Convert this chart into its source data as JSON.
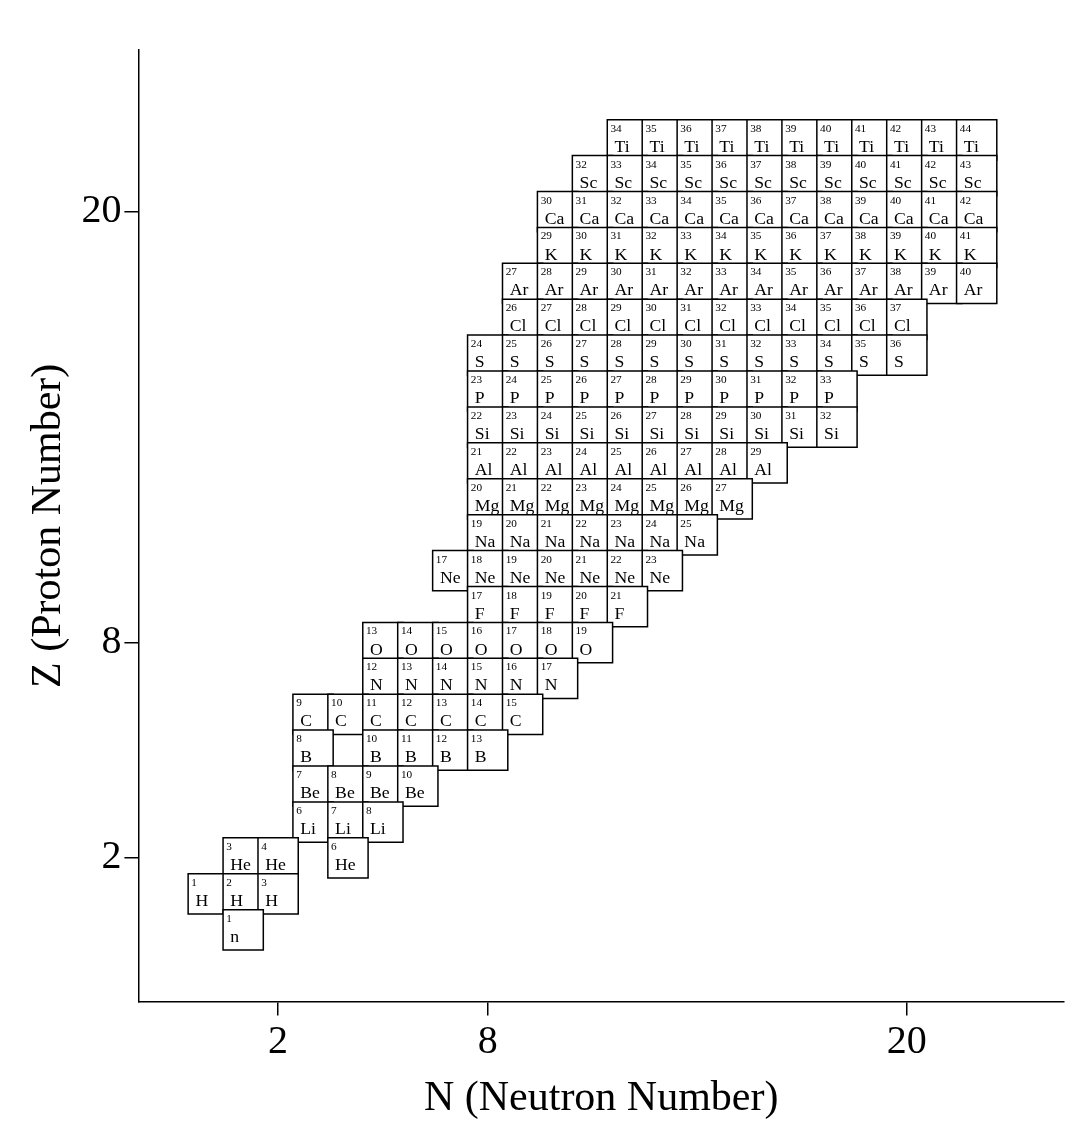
{
  "chart_data": {
    "type": "heatmap",
    "xlabel": "N (Neutron Number)",
    "ylabel": "Z (Proton Number)",
    "categories": [
      null,
      null,
      "2",
      null,
      null,
      null,
      null,
      null,
      "8",
      null,
      null,
      null,
      null,
      null,
      null,
      null,
      null,
      null,
      null,
      null,
      "20",
      null,
      null
    ],
    "y_categories": [
      null,
      null,
      "20",
      null,
      null,
      null,
      null,
      null,
      null,
      null,
      null,
      null,
      null,
      null,
      "8",
      null,
      null,
      null,
      null,
      null,
      "2",
      null,
      null
    ],
    "cells": [
      [
        null,
        null,
        null,
        null,
        null,
        null,
        null,
        null,
        null,
        null,
        null,
        null,
        34,
        35,
        36,
        37,
        38,
        39,
        40,
        41,
        42,
        43,
        44
      ],
      [
        null,
        null,
        null,
        null,
        null,
        null,
        null,
        null,
        null,
        null,
        null,
        32,
        33,
        34,
        35,
        36,
        37,
        38,
        39,
        40,
        41,
        42,
        43
      ],
      [
        null,
        null,
        null,
        null,
        null,
        null,
        null,
        null,
        null,
        null,
        30,
        31,
        32,
        33,
        34,
        35,
        36,
        37,
        38,
        39,
        40,
        41,
        42
      ],
      [
        null,
        null,
        null,
        null,
        null,
        null,
        null,
        null,
        null,
        null,
        29,
        30,
        31,
        32,
        33,
        34,
        35,
        36,
        37,
        38,
        39,
        40,
        41
      ],
      [
        null,
        null,
        null,
        null,
        null,
        null,
        null,
        null,
        null,
        27,
        28,
        29,
        30,
        31,
        32,
        33,
        34,
        35,
        36,
        37,
        38,
        39,
        40
      ],
      [
        null,
        null,
        null,
        null,
        null,
        null,
        null,
        null,
        null,
        26,
        27,
        28,
        29,
        30,
        31,
        32,
        33,
        34,
        35,
        36,
        37,
        null,
        null
      ],
      [
        null,
        null,
        null,
        null,
        null,
        null,
        null,
        null,
        24,
        25,
        26,
        27,
        28,
        29,
        30,
        31,
        32,
        33,
        34,
        35,
        36,
        null,
        null
      ],
      [
        null,
        null,
        null,
        null,
        null,
        null,
        null,
        null,
        23,
        24,
        25,
        26,
        27,
        28,
        29,
        30,
        31,
        32,
        33,
        null,
        null,
        null,
        null
      ],
      [
        null,
        null,
        null,
        null,
        null,
        null,
        null,
        null,
        22,
        23,
        24,
        25,
        26,
        27,
        28,
        29,
        30,
        31,
        32,
        null,
        null,
        null,
        null
      ],
      [
        null,
        null,
        null,
        null,
        null,
        null,
        null,
        null,
        21,
        22,
        23,
        24,
        25,
        26,
        27,
        28,
        29,
        null,
        null,
        null,
        null,
        null,
        null
      ],
      [
        null,
        null,
        null,
        null,
        null,
        null,
        null,
        null,
        20,
        21,
        22,
        23,
        24,
        25,
        26,
        27,
        null,
        null,
        null,
        null,
        null,
        null,
        null
      ],
      [
        null,
        null,
        null,
        null,
        null,
        null,
        null,
        null,
        19,
        20,
        21,
        22,
        23,
        24,
        25,
        null,
        null,
        null,
        null,
        null,
        null,
        null,
        null
      ],
      [
        null,
        null,
        null,
        null,
        null,
        null,
        null,
        17,
        18,
        19,
        20,
        21,
        22,
        23,
        null,
        null,
        null,
        null,
        null,
        null,
        null,
        null,
        null
      ],
      [
        null,
        null,
        null,
        null,
        null,
        null,
        null,
        null,
        17,
        18,
        19,
        20,
        21,
        null,
        null,
        null,
        null,
        null,
        null,
        null,
        null,
        null,
        null
      ],
      [
        null,
        null,
        null,
        null,
        null,
        13,
        14,
        15,
        16,
        17,
        18,
        19,
        null,
        null,
        null,
        null,
        null,
        null,
        null,
        null,
        null,
        null,
        null
      ],
      [
        null,
        null,
        null,
        null,
        null,
        12,
        13,
        14,
        15,
        16,
        17,
        null,
        null,
        null,
        null,
        null,
        null,
        null,
        null,
        null,
        null,
        null,
        null
      ],
      [
        null,
        null,
        null,
        9,
        10,
        11,
        12,
        13,
        14,
        15,
        null,
        null,
        null,
        null,
        null,
        null,
        null,
        null,
        null,
        null,
        null,
        null,
        null
      ],
      [
        null,
        null,
        null,
        8,
        null,
        10,
        11,
        12,
        13,
        null,
        null,
        null,
        null,
        null,
        null,
        null,
        null,
        null,
        null,
        null,
        null,
        null,
        null
      ],
      [
        null,
        null,
        null,
        7,
        8,
        9,
        10,
        null,
        null,
        null,
        null,
        null,
        null,
        null,
        null,
        null,
        null,
        null,
        null,
        null,
        null,
        null,
        null
      ],
      [
        null,
        null,
        null,
        6,
        7,
        8,
        null,
        null,
        null,
        null,
        null,
        null,
        null,
        null,
        null,
        null,
        null,
        null,
        null,
        null,
        null,
        null,
        null
      ],
      [
        null,
        3,
        4,
        null,
        6,
        null,
        null,
        null,
        null,
        null,
        null,
        null,
        null,
        null,
        null,
        null,
        null,
        null,
        null,
        null,
        null,
        null,
        null
      ],
      [
        1,
        2,
        3,
        null,
        null,
        null,
        null,
        null,
        null,
        null,
        null,
        null,
        null,
        null,
        null,
        null,
        null,
        null,
        null,
        null,
        null,
        null,
        null
      ],
      [
        null,
        1,
        null,
        null,
        null,
        null,
        null,
        null,
        null,
        null,
        null,
        null,
        null,
        null,
        null,
        null,
        null,
        null,
        null,
        null,
        null,
        null,
        null
      ]
    ],
    "cell_labels": [
      [
        null,
        null,
        null,
        null,
        null,
        null,
        null,
        null,
        null,
        null,
        null,
        null,
        "$^{34}$Ti",
        "$^{35}$Ti",
        "$^{36}$Ti",
        "$^{37}$Ti",
        "$^{38}$Ti",
        "$^{39}$Ti",
        "$^{40}$Ti",
        "$^{41}$Ti",
        "$^{42}$Ti",
        "$^{43}$Ti",
        "$^{44}$Ti"
      ],
      [
        null,
        null,
        null,
        null,
        null,
        null,
        null,
        null,
        null,
        null,
        null,
        "$^{32}$Sc",
        "$^{33}$Sc",
        "$^{34}$Sc",
        "$^{35}$Sc",
        "$^{36}$Sc",
        "$^{37}$Sc",
        "$^{38}$Sc",
        "$^{39}$Sc",
        "$^{40}$Sc",
        "$^{41}$Sc",
        "$^{42}$Sc",
        "$^{43}$Sc"
      ],
      [
        null,
        null,
        null,
        null,
        null,
        null,
        null,
        null,
        null,
        null,
        "$^{30}$Ca",
        "$^{31}$Ca",
        "$^{32}$Ca",
        "$^{33}$Ca",
        "$^{34}$Ca",
        "$^{35}$Ca",
        "$^{36}$Ca",
        "$^{37}$Ca",
        "$^{38}$Ca",
        "$^{39}$Ca",
        "$^{40}$Ca",
        "$^{41}$Ca",
        "$^{42}$Ca"
      ],
      [
        null,
        null,
        null,
        null,
        null,
        null,
        null,
        null,
        null,
        null,
        "$^{29}$K",
        "$^{30}$K",
        "$^{31}$K",
        "$^{32}$K",
        "$^{33}$K",
        "$^{34}$K",
        "$^{35}$K",
        "$^{36}$K",
        "$^{37}$K",
        "$^{38}$K",
        "$^{39}$K",
        "$^{40}$K",
        "$^{41}$K"
      ],
      [
        null,
        null,
        null,
        null,
        null,
        null,
        null,
        null,
        null,
        "$^{27}$Ar",
        "$^{28}$Ar",
        "$^{29}$Ar",
        "$^{30}$Ar",
        "$^{31}$Ar",
        "$^{32}$Ar",
        "$^{33}$Ar",
        "$^{34}$Ar",
        "$^{35}$Ar",
        "$^{36}$Ar",
        "$^{37}$Ar",
        "$^{38}$Ar",
        "$^{39}$Ar",
        "$^{40}$Ar"
      ],
      [
        null,
        null,
        null,
        null,
        null,
        null,
        null,
        null,
        null,
        "$^{26}$Cl",
        "$^{27}$Cl",
        "$^{28}$Cl",
        "$^{29}$Cl",
        "$^{30}$Cl",
        "$^{31}$Cl",
        "$^{32}$Cl",
        "$^{33}$Cl",
        "$^{34}$Cl",
        "$^{35}$Cl",
        "$^{36}$Cl",
        "$^{37}$Cl",
        null,
        null
      ],
      [
        null,
        null,
        null,
        null,
        null,
        null,
        null,
        null,
        "$^{24}$S",
        "$^{25}$S",
        "$^{26}$S",
        "$^{27}$S",
        "$^{28}$S",
        "$^{29}$S",
        "$^{30}$S",
        "$^{31}$S",
        "$^{32}$S",
        "$^{33}$S",
        "$^{34}$S",
        "$^{35}$S",
        "$^{36}$S",
        null,
        null
      ],
      [
        null,
        null,
        null,
        null,
        null,
        null,
        null,
        null,
        "$^{23}$P",
        "$^{24}$P",
        "$^{25}$P",
        "$^{26}$P",
        "$^{27}$P",
        "$^{28}$P",
        "$^{29}$P",
        "$^{30}$P",
        "$^{31}$P",
        "$^{32}$P",
        "$^{33}$P",
        null,
        null,
        null,
        null
      ],
      [
        null,
        null,
        null,
        null,
        null,
        null,
        null,
        null,
        "$^{22}$Si",
        "$^{23}$Si",
        "$^{24}$Si",
        "$^{25}$Si",
        "$^{26}$Si",
        "$^{27}$Si",
        "$^{28}$Si",
        "$^{29}$Si",
        "$^{30}$Si",
        "$^{31}$Si",
        "$^{32}$Si",
        null,
        null,
        null,
        null
      ],
      [
        null,
        null,
        null,
        null,
        null,
        null,
        null,
        null,
        "$^{21}$Al",
        "$^{22}$Al",
        "$^{23}$Al",
        "$^{24}$Al",
        "$^{25}$Al",
        "$^{26}$Al",
        "$^{27}$Al",
        "$^{28}$Al",
        "$^{29}$Al",
        null,
        null,
        null,
        null,
        null,
        null
      ],
      [
        null,
        null,
        null,
        null,
        null,
        null,
        null,
        null,
        "$^{20}$Mg",
        "$^{21}$Mg",
        "$^{22}$Mg",
        "$^{23}$Mg",
        "$^{24}$Mg",
        "$^{25}$Mg",
        "$^{26}$Mg",
        "$^{27}$Mg",
        null,
        null,
        null,
        null,
        null,
        null,
        null
      ],
      [
        null,
        null,
        null,
        null,
        null,
        null,
        null,
        null,
        "$^{19}$Na",
        "$^{20}$Na",
        "$^{21}$Na",
        "$^{22}$Na",
        "$^{23}$Na",
        "$^{24}$Na",
        "$^{25}$Na",
        null,
        null,
        null,
        null,
        null,
        null,
        null,
        null
      ],
      [
        null,
        null,
        null,
        null,
        null,
        null,
        null,
        "$^{17}$Ne",
        "$^{18}$Ne",
        "$^{19}$Ne",
        "$^{20}$Ne",
        "$^{21}$Ne",
        "$^{22}$Ne",
        "$^{23}$Ne",
        null,
        null,
        null,
        null,
        null,
        null,
        null,
        null,
        null
      ],
      [
        null,
        null,
        null,
        null,
        null,
        null,
        null,
        null,
        "$^{17}$F",
        "$^{18}$F",
        "$^{19}$F",
        "$^{20}$F",
        "$^{21}$F",
        null,
        null,
        null,
        null,
        null,
        null,
        null,
        null,
        null,
        null
      ],
      [
        null,
        null,
        null,
        null,
        null,
        "$^{13}$O",
        "$^{14}$O",
        "$^{15}$O",
        "$^{16}$O",
        "$^{17}$O",
        "$^{18}$O",
        "$^{19}$O",
        null,
        null,
        null,
        null,
        null,
        null,
        null,
        null,
        null,
        null,
        null
      ],
      [
        null,
        null,
        null,
        null,
        null,
        "$^{12}$N",
        "$^{13}$N",
        "$^{14}$N",
        "$^{15}$N",
        "$^{16}$N",
        "$^{17}$N",
        null,
        null,
        null,
        null,
        null,
        null,
        null,
        null,
        null,
        null,
        null,
        null
      ],
      [
        null,
        null,
        null,
        "$^{9}$C",
        "$^{10}$C",
        "$^{11}$C",
        "$^{12}$C",
        "$^{13}$C",
        "$^{14}$C",
        "$^{15}$C",
        null,
        null,
        null,
        null,
        null,
        null,
        null,
        null,
        null,
        null,
        null,
        null,
        null
      ],
      [
        null,
        null,
        null,
        "$^{8}$B",
        null,
        "$^{10}$B",
        "$^{11}$B",
        "$^{12}$B",
        "$^{13}$B",
        null,
        null,
        null,
        null,
        null,
        null,
        null,
        null,
        null,
        null,
        null,
        null,
        null,
        null
      ],
      [
        null,
        null,
        null,
        "$^{7}$Be",
        "$^{8}$Be",
        "$^{9}$Be",
        "$^{10}$Be",
        null,
        null,
        null,
        null,
        null,
        null,
        null,
        null,
        null,
        null,
        null,
        null,
        null,
        null,
        null,
        null
      ],
      [
        null,
        null,
        null,
        "$^{6}$Li",
        "$^{7}$Li",
        "$^{8}$Li",
        null,
        null,
        null,
        null,
        null,
        null,
        null,
        null,
        null,
        null,
        null,
        null,
        null,
        null,
        null,
        null,
        null
      ],
      [
        null,
        "$^{3}$He",
        "$^{4}$He",
        null,
        "$^{6}$He",
        null,
        null,
        null,
        null,
        null,
        null,
        null,
        null,
        null,
        null,
        null,
        null,
        null,
        null,
        null,
        null,
        null,
        null
      ],
      [
        "$^{1}$H",
        "$^{2}$H",
        "$^{3}$H",
        null,
        null,
        null,
        null,
        null,
        null,
        null,
        null,
        null,
        null,
        null,
        null,
        null,
        null,
        null,
        null,
        null,
        null,
        null,
        null
      ],
      [
        null,
        "$^{1}$n",
        null,
        null,
        null,
        null,
        null,
        null,
        null,
        null,
        null,
        null,
        null,
        null,
        null,
        null,
        null,
        null,
        null,
        null,
        null,
        null,
        null
      ]
    ]
  }
}
